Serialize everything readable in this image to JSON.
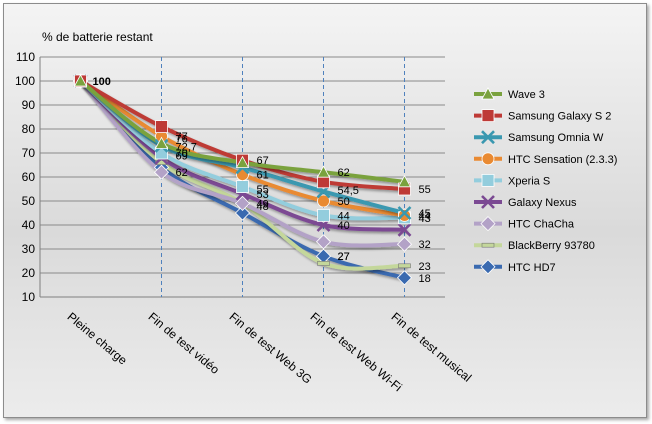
{
  "chart_data": {
    "type": "line",
    "title": "% de batterie restant",
    "categories": [
      "Pleine charge",
      "Fin de test  vidéo",
      "Fin de test  Web 3G",
      "Fin de test  Web Wi-Fi",
      "Fin de test  musical"
    ],
    "ylim": [
      10,
      110
    ],
    "yticks": [
      10,
      20,
      30,
      40,
      50,
      60,
      70,
      80,
      90,
      100,
      110
    ],
    "grid": "horizontal",
    "legend_position": "right",
    "series": [
      {
        "name": "Wave 3",
        "color": "#7aa23e",
        "marker": "triangle",
        "values": [
          100,
          74,
          66,
          62,
          58
        ]
      },
      {
        "name": "Samsung Galaxy S 2",
        "color": "#be3a36",
        "marker": "square",
        "values": [
          100,
          81,
          67,
          58,
          55
        ]
      },
      {
        "name": "Samsung Omnia W",
        "color": "#3a98b0",
        "marker": "x",
        "values": [
          100,
          73,
          64,
          54,
          45
        ]
      },
      {
        "name": "HTC Sensation (2.3.3)",
        "color": "#e98a32",
        "marker": "circle",
        "values": [
          100,
          77,
          61,
          50,
          44
        ]
      },
      {
        "name": "Xperia S",
        "color": "#93cddd",
        "marker": "square",
        "values": [
          100,
          70,
          56,
          44,
          43
        ]
      },
      {
        "name": "Galaxy Nexus",
        "color": "#7b4a93",
        "marker": "x",
        "values": [
          100,
          68,
          53,
          40,
          38
        ]
      },
      {
        "name": "HTC ChaCha",
        "color": "#b3a2c7",
        "marker": "diamond",
        "values": [
          100,
          62,
          49,
          33,
          32
        ]
      },
      {
        "name": "BlackBerry 93780",
        "color": "#c4d79b",
        "marker": "dash",
        "values": [
          100,
          66,
          49,
          24,
          23
        ]
      },
      {
        "name": "HTC HD7",
        "color": "#3a6ab0",
        "marker": "diamond",
        "values": [
          100,
          64,
          45,
          27,
          18
        ]
      }
    ],
    "data_labels": [
      {
        "category": 0,
        "y": 100,
        "text": "100"
      },
      {
        "category": 1,
        "y": 77,
        "text": "77"
      },
      {
        "category": 1,
        "y": 76,
        "text": "76"
      },
      {
        "category": 1,
        "y": 72.7,
        "text": "72,7"
      },
      {
        "category": 1,
        "y": 70,
        "text": "70"
      },
      {
        "category": 1,
        "y": 69,
        "text": "69"
      },
      {
        "category": 1,
        "y": 62,
        "text": "62"
      },
      {
        "category": 2,
        "y": 67,
        "text": "67"
      },
      {
        "category": 2,
        "y": 61,
        "text": "61"
      },
      {
        "category": 2,
        "y": 55,
        "text": "55"
      },
      {
        "category": 2,
        "y": 53,
        "text": "53"
      },
      {
        "category": 2,
        "y": 49,
        "text": "49"
      },
      {
        "category": 2,
        "y": 48,
        "text": "48"
      },
      {
        "category": 3,
        "y": 62,
        "text": "62"
      },
      {
        "category": 3,
        "y": 54.5,
        "text": "54,5"
      },
      {
        "category": 3,
        "y": 50,
        "text": "50"
      },
      {
        "category": 3,
        "y": 44,
        "text": "44"
      },
      {
        "category": 3,
        "y": 40,
        "text": "40"
      },
      {
        "category": 3,
        "y": 27,
        "text": "27"
      },
      {
        "category": 3,
        "y": 27,
        "text": "27"
      },
      {
        "category": 4,
        "y": 55,
        "text": "55"
      },
      {
        "category": 4,
        "y": 45,
        "text": "45"
      },
      {
        "category": 4,
        "y": 44,
        "text": "44"
      },
      {
        "category": 4,
        "y": 43,
        "text": "43"
      },
      {
        "category": 4,
        "y": 32,
        "text": "32"
      },
      {
        "category": 4,
        "y": 23,
        "text": "23"
      },
      {
        "category": 4,
        "y": 18,
        "text": "18"
      }
    ]
  }
}
